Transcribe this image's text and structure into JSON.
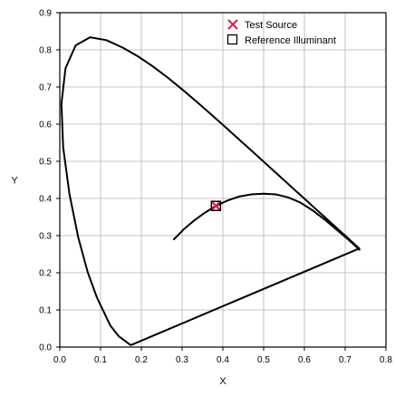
{
  "chart_data": {
    "type": "scatter",
    "title": "",
    "xlabel": "X",
    "ylabel": "Y",
    "xlim": [
      0.0,
      0.8
    ],
    "ylim": [
      0.0,
      0.9
    ],
    "x_ticks": [
      "0.0",
      "0.1",
      "0.2",
      "0.3",
      "0.4",
      "0.5",
      "0.6",
      "0.7",
      "0.8"
    ],
    "y_ticks": [
      "0.0",
      "0.1",
      "0.2",
      "0.3",
      "0.4",
      "0.5",
      "0.6",
      "0.7",
      "0.8",
      "0.9"
    ],
    "grid": true,
    "legend_position": "top-right",
    "spectral_locus": {
      "x": [
        0.1741,
        0.144,
        0.1241,
        0.0913,
        0.0687,
        0.0454,
        0.0235,
        0.0082,
        0.0039,
        0.0139,
        0.0389,
        0.0743,
        0.1142,
        0.1547,
        0.1929,
        0.2296,
        0.2658,
        0.3016,
        0.3373,
        0.3731,
        0.4087,
        0.4441,
        0.4788,
        0.5125,
        0.5448,
        0.5752,
        0.6029,
        0.627,
        0.6482,
        0.6658,
        0.6801,
        0.6915,
        0.7006,
        0.7079,
        0.714,
        0.719,
        0.723,
        0.726,
        0.7283,
        0.73,
        0.7311,
        0.732,
        0.7327,
        0.7334,
        0.734,
        0.7344,
        0.7346,
        0.7347,
        0.1741
      ],
      "y": [
        0.005,
        0.0297,
        0.0578,
        0.1327,
        0.2007,
        0.295,
        0.4127,
        0.5384,
        0.6548,
        0.7502,
        0.812,
        0.8338,
        0.8262,
        0.8059,
        0.7816,
        0.7543,
        0.7243,
        0.6923,
        0.6589,
        0.6245,
        0.5896,
        0.5547,
        0.5202,
        0.4866,
        0.4544,
        0.4242,
        0.3965,
        0.3725,
        0.3514,
        0.334,
        0.3197,
        0.3083,
        0.2993,
        0.292,
        0.2859,
        0.2809,
        0.277,
        0.274,
        0.2717,
        0.27,
        0.2689,
        0.268,
        0.2673,
        0.2666,
        0.266,
        0.2656,
        0.2654,
        0.2653,
        0.005
      ]
    },
    "planckian_locus": {
      "x": [
        0.28,
        0.305,
        0.33,
        0.355,
        0.38,
        0.41,
        0.44,
        0.47,
        0.5,
        0.53,
        0.56,
        0.59,
        0.62,
        0.65,
        0.68,
        0.71,
        0.735
      ],
      "y": [
        0.29,
        0.318,
        0.341,
        0.361,
        0.378,
        0.394,
        0.405,
        0.411,
        0.413,
        0.411,
        0.403,
        0.389,
        0.368,
        0.343,
        0.315,
        0.287,
        0.262
      ]
    },
    "series": [
      {
        "name": "Test Source",
        "marker": "x",
        "color": "#e0204a",
        "x": [
          0.383
        ],
        "y": [
          0.38
        ]
      },
      {
        "name": "Reference Illuminant",
        "marker": "square",
        "color": "#000000",
        "x": [
          0.383
        ],
        "y": [
          0.38
        ]
      }
    ]
  }
}
